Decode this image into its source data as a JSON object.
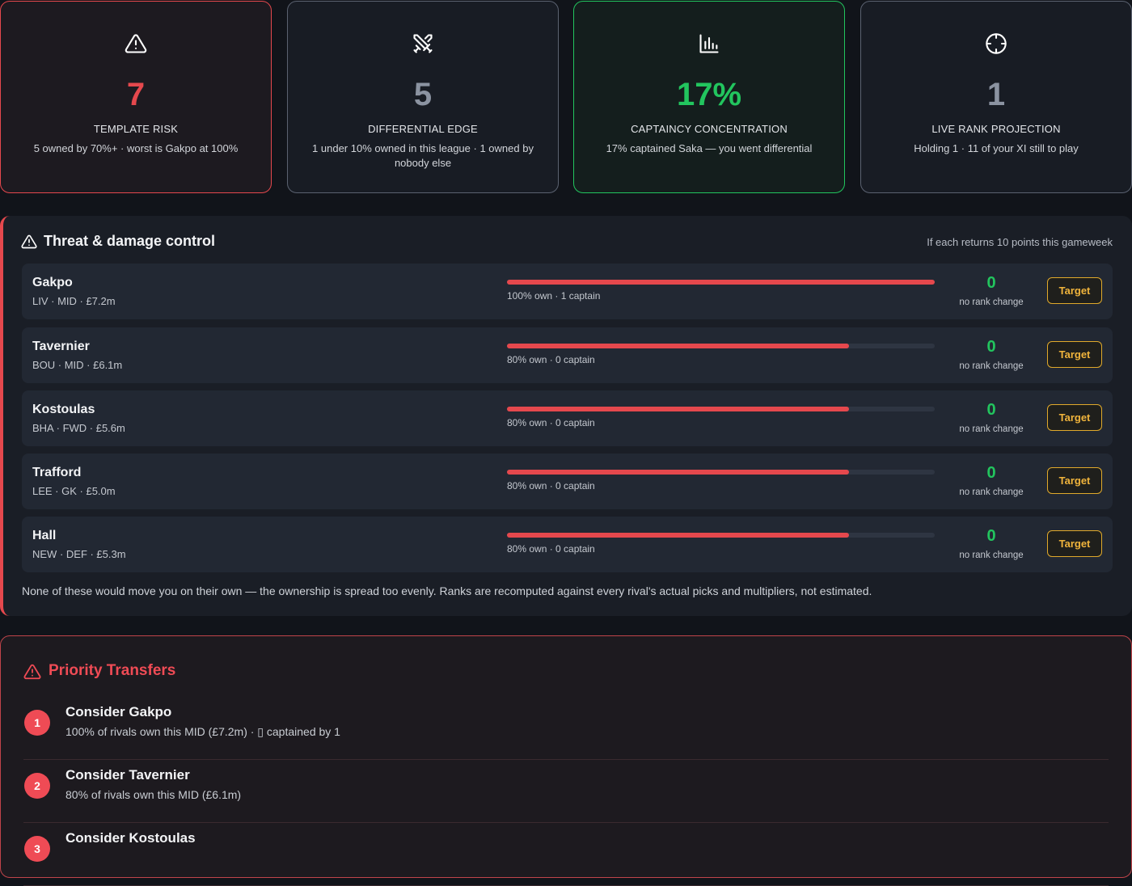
{
  "colors": {
    "danger": "#e5484d",
    "success": "#22c55e",
    "neutral_value": "#8b93a1",
    "target_button": "#f0b43c",
    "priority_accent": "#ef4b55"
  },
  "stats": [
    {
      "icon": "warning-triangle-icon",
      "value": "7",
      "label": "TEMPLATE RISK",
      "sub": "5 owned by 70%+ · worst is Gakpo at 100%"
    },
    {
      "icon": "crossed-swords-icon",
      "value": "5",
      "label": "DIFFERENTIAL EDGE",
      "sub": "1 under 10% owned in this league · 1 owned by nobody else"
    },
    {
      "icon": "bar-chart-icon",
      "value": "17%",
      "label": "CAPTAINCY CONCENTRATION",
      "sub": "17% captained Saka — you went differential"
    },
    {
      "icon": "crosshair-icon",
      "value": "1",
      "label": "LIVE RANK PROJECTION",
      "sub": "Holding 1 · 11 of your XI still to play"
    }
  ],
  "threat": {
    "title": "Threat & damage control",
    "note": "If each returns 10 points this gameweek",
    "footer": "None of these would move you on their own — the ownership is spread too evenly. Ranks are recomputed against every rival's actual picks and multipliers, not estimated.",
    "target_label": "Target",
    "players": [
      {
        "name": "Gakpo",
        "meta": "LIV · MID · £7.2m",
        "ownership": 1.0,
        "bar_label": "100% own · 1 captain",
        "rank_value": "0",
        "rank_label": "no rank change"
      },
      {
        "name": "Tavernier",
        "meta": "BOU · MID · £6.1m",
        "ownership": 0.8,
        "bar_label": "80% own · 0 captain",
        "rank_value": "0",
        "rank_label": "no rank change"
      },
      {
        "name": "Kostoulas",
        "meta": "BHA · FWD · £5.6m",
        "ownership": 0.8,
        "bar_label": "80% own · 0 captain",
        "rank_value": "0",
        "rank_label": "no rank change"
      },
      {
        "name": "Trafford",
        "meta": "LEE · GK · £5.0m",
        "ownership": 0.8,
        "bar_label": "80% own · 0 captain",
        "rank_value": "0",
        "rank_label": "no rank change"
      },
      {
        "name": "Hall",
        "meta": "NEW · DEF · £5.3m",
        "ownership": 0.8,
        "bar_label": "80% own · 0 captain",
        "rank_value": "0",
        "rank_label": "no rank change"
      }
    ]
  },
  "priority": {
    "title": "Priority Transfers",
    "items": [
      {
        "number": "1",
        "title": "Consider Gakpo",
        "desc": "100% of rivals own this MID (£7.2m) · ▯ captained by 1"
      },
      {
        "number": "2",
        "title": "Consider Tavernier",
        "desc": "80% of rivals own this MID (£6.1m)"
      },
      {
        "number": "3",
        "title": "Consider Kostoulas",
        "desc": ""
      }
    ]
  }
}
